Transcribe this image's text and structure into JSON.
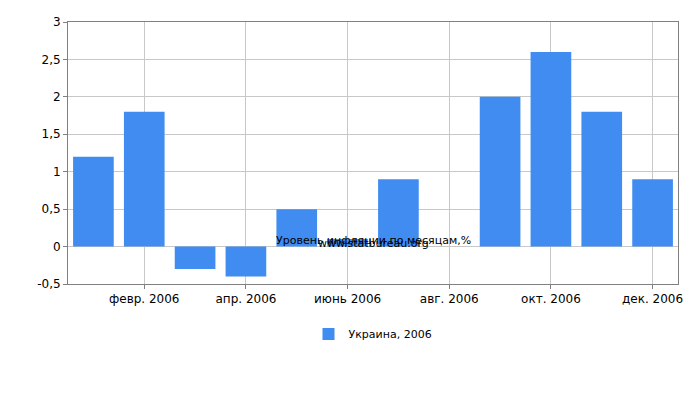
{
  "chart_data": {
    "type": "bar",
    "title": "Уровень инфляции по месяцам,%",
    "subtitle": "www.statbureau.org",
    "categories": [
      null,
      "февр. 2006",
      null,
      "апр. 2006",
      null,
      "июнь 2006",
      null,
      "авг. 2006",
      null,
      "окт. 2006",
      null,
      "дек. 2006"
    ],
    "series": [
      {
        "name": "Украина, 2006",
        "color": "#418cf0",
        "values": [
          1.2,
          1.8,
          -0.3,
          -0.4,
          0.5,
          0.1,
          0.9,
          0,
          2.0,
          2.6,
          1.8,
          0.9
        ]
      }
    ],
    "ylim": [
      -0.5,
      3
    ],
    "yticks": [
      {
        "value": -0.5,
        "label": "-0,5"
      },
      0,
      {
        "value": 0.5,
        "label": "0,5"
      },
      1,
      {
        "value": 1.5,
        "label": "1,5"
      },
      2,
      {
        "value": 2.5,
        "label": "2,5"
      },
      3
    ],
    "grid": true,
    "legend": "bottom"
  }
}
